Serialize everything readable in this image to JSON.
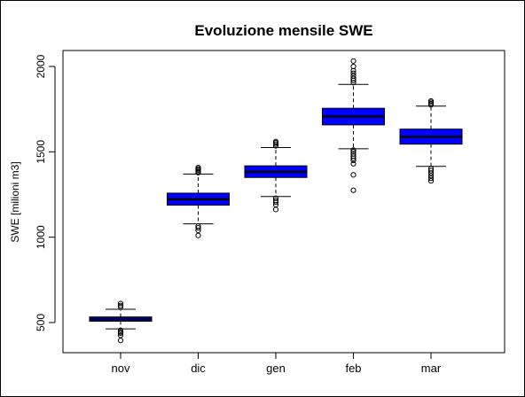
{
  "chart_data": {
    "type": "box",
    "title": "Evoluzione mensile SWE",
    "xlabel": "",
    "ylabel": "SWE [milioni m3]",
    "ylim": [
      330,
      2050
    ],
    "yticks": [
      500,
      1000,
      1500,
      2000
    ],
    "grid": false,
    "legend": "none",
    "box_fill": "#0000ff",
    "categories": [
      "nov",
      "dic",
      "gen",
      "feb",
      "mar"
    ],
    "boxes": [
      {
        "category": "nov",
        "whisker_low": 463,
        "q1": 508,
        "median": 520,
        "q3": 533,
        "whisker_high": 578,
        "outliers": [
          395,
          425,
          438,
          445,
          455,
          592,
          600,
          612
        ]
      },
      {
        "category": "dic",
        "whisker_low": 1078,
        "q1": 1188,
        "median": 1222,
        "q3": 1258,
        "whisker_high": 1370,
        "outliers": [
          1010,
          1040,
          1055,
          1065,
          1378,
          1385,
          1393,
          1400,
          1408
        ]
      },
      {
        "category": "gen",
        "whisker_low": 1238,
        "q1": 1350,
        "median": 1383,
        "q3": 1418,
        "whisker_high": 1525,
        "outliers": [
          1162,
          1190,
          1205,
          1215,
          1228,
          1535,
          1545,
          1553,
          1560
        ]
      },
      {
        "category": "feb",
        "whisker_low": 1518,
        "q1": 1658,
        "median": 1707,
        "q3": 1755,
        "whisker_high": 1895,
        "outliers": [
          1275,
          1365,
          1430,
          1450,
          1462,
          1475,
          1488,
          1500,
          1510,
          1905,
          1918,
          1930,
          1945,
          1960,
          1975,
          2000,
          2032
        ]
      },
      {
        "category": "mar",
        "whisker_low": 1415,
        "q1": 1545,
        "median": 1588,
        "q3": 1633,
        "whisker_high": 1768,
        "outliers": [
          1330,
          1345,
          1360,
          1375,
          1390,
          1402,
          1775,
          1782,
          1790,
          1798
        ]
      }
    ]
  }
}
